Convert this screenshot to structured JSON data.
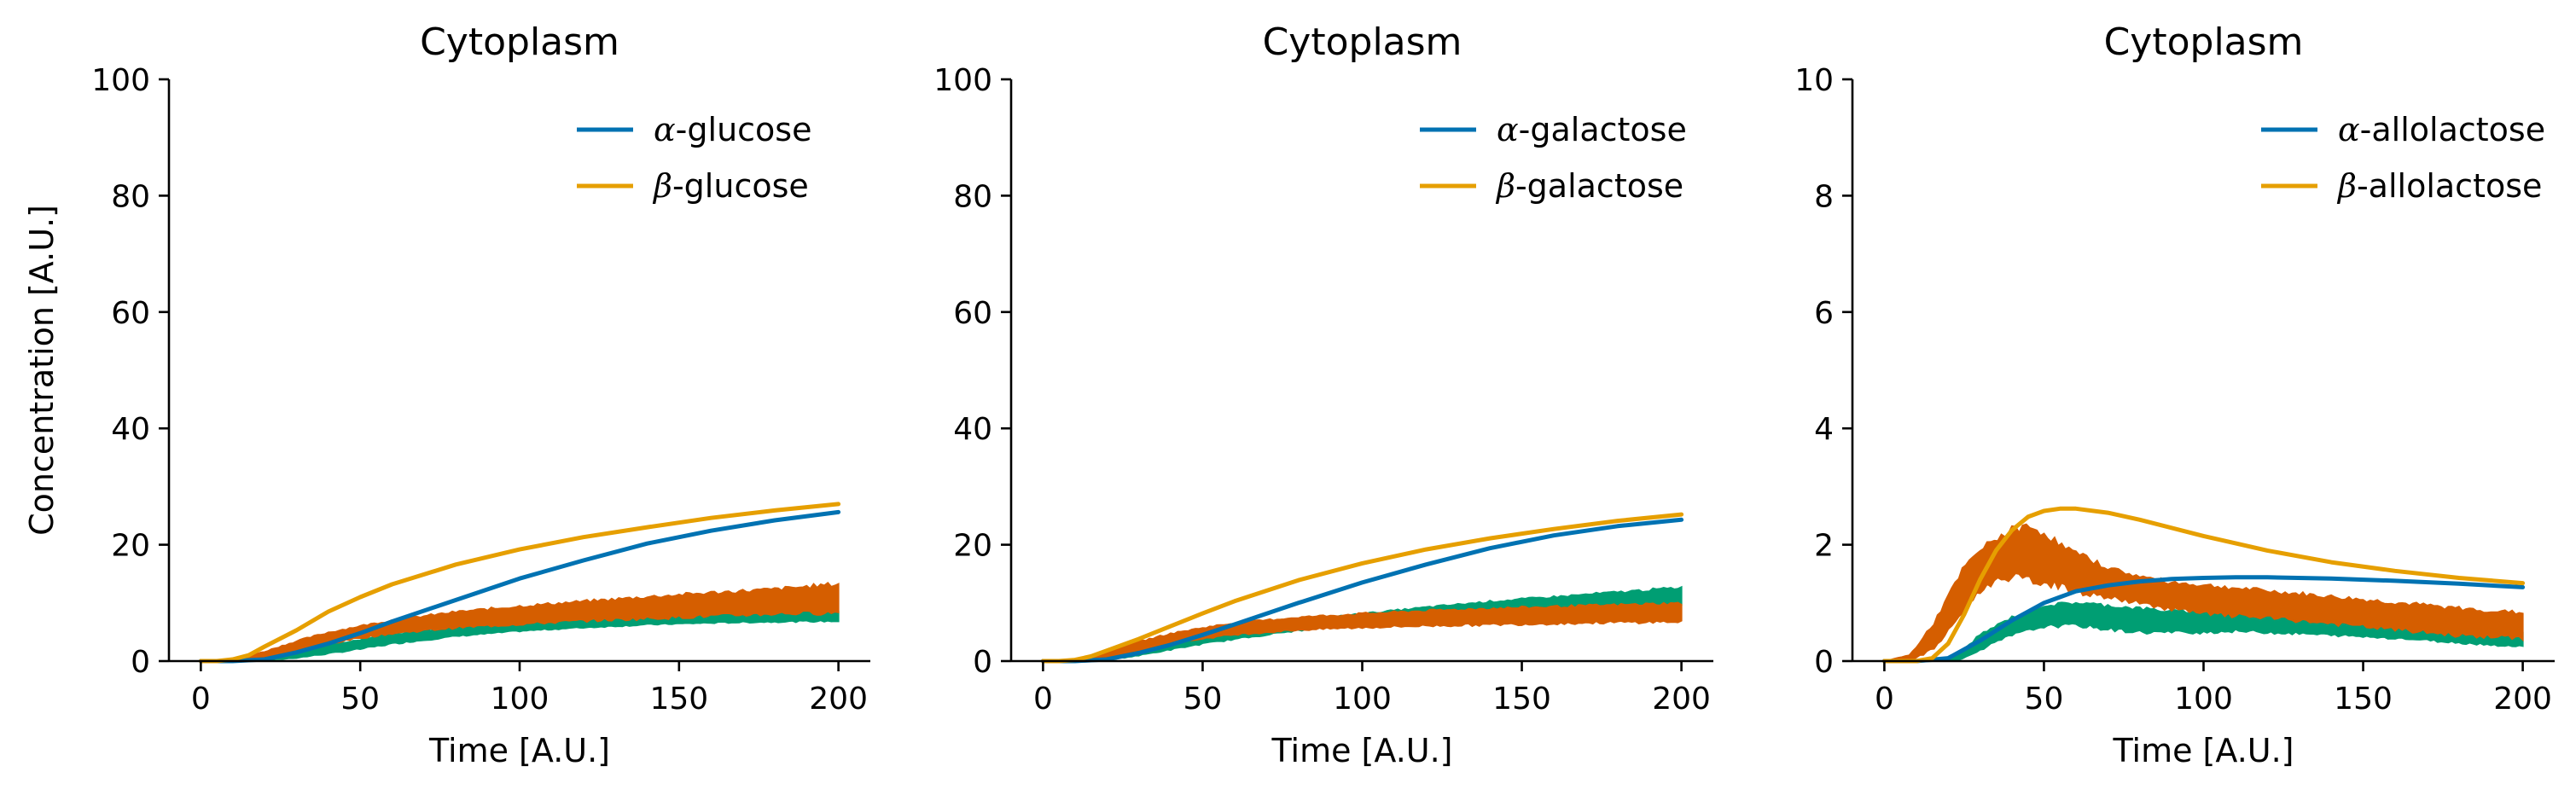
{
  "chart_data": [
    {
      "type": "line",
      "title": "Cytoplasm",
      "xlabel": "Time [A.U.]",
      "ylabel": "Concentration [A.U.]",
      "xlim": [
        -10,
        210
      ],
      "ylim": [
        0,
        100
      ],
      "xticks": [
        "0",
        "50",
        "100",
        "150",
        "200"
      ],
      "yticks": [
        "0",
        "20",
        "40",
        "60",
        "80",
        "100"
      ],
      "legend_position": "top-right",
      "series": [
        {
          "name": "α-glucose",
          "legend_greek": "α",
          "legend_rest": "-glucose",
          "style": "line",
          "color": "#0072b2",
          "x": [
            0,
            10,
            20,
            30,
            40,
            50,
            60,
            80,
            100,
            120,
            140,
            160,
            180,
            200
          ],
          "y": [
            0,
            0,
            0.3,
            1.5,
            3,
            4.8,
            6.8,
            10.5,
            14.2,
            17.3,
            20.2,
            22.4,
            24.2,
            25.6
          ]
        },
        {
          "name": "β-glucose",
          "legend_greek": "β",
          "legend_rest": "-glucose",
          "style": "line",
          "color": "#e69f00",
          "x": [
            0,
            5,
            10,
            15,
            20,
            30,
            40,
            50,
            60,
            80,
            100,
            120,
            140,
            160,
            180,
            200
          ],
          "y": [
            0,
            0,
            0.3,
            1,
            2.5,
            5.3,
            8.5,
            11,
            13.2,
            16.6,
            19.2,
            21.3,
            23,
            24.6,
            25.9,
            27
          ]
        },
        {
          "name": "",
          "style": "band",
          "color": "#009e73",
          "x": [
            0,
            10,
            20,
            30,
            40,
            50,
            60,
            80,
            100,
            120,
            140,
            160,
            180,
            200
          ],
          "lower": [
            0,
            0,
            0.1,
            0.6,
            1.3,
            2.1,
            3,
            4.3,
            5.2,
            5.8,
            6.3,
            6.6,
            6.8,
            6.9
          ],
          "upper": [
            0,
            0,
            0.6,
            1.6,
            2.6,
            3.7,
            4.6,
            5.8,
            6.6,
            7.2,
            7.7,
            8.1,
            8.4,
            8.6
          ]
        },
        {
          "name": "",
          "style": "band",
          "color": "#d55e00",
          "x": [
            0,
            10,
            20,
            30,
            40,
            50,
            60,
            80,
            100,
            120,
            140,
            160,
            180,
            200
          ],
          "lower": [
            0,
            0,
            0.6,
            1.8,
            3,
            4,
            4.8,
            5.8,
            6.4,
            7,
            7.4,
            7.8,
            8.2,
            8.4
          ],
          "upper": [
            0,
            0.2,
            1.6,
            3.4,
            4.9,
            6,
            7,
            8.4,
            9.4,
            10.2,
            11,
            11.7,
            12.3,
            13.2
          ]
        }
      ]
    },
    {
      "type": "line",
      "title": "Cytoplasm",
      "xlabel": "Time [A.U.]",
      "ylabel": "",
      "xlim": [
        -10,
        210
      ],
      "ylim": [
        0,
        100
      ],
      "xticks": [
        "0",
        "50",
        "100",
        "150",
        "200"
      ],
      "yticks": [
        "0",
        "20",
        "40",
        "60",
        "80",
        "100"
      ],
      "legend_position": "top-right",
      "series": [
        {
          "name": "α-galactose",
          "legend_greek": "α",
          "legend_rest": "-galactose",
          "style": "line",
          "color": "#0072b2",
          "x": [
            0,
            10,
            20,
            30,
            40,
            50,
            60,
            80,
            100,
            120,
            140,
            160,
            180,
            200
          ],
          "y": [
            0,
            0,
            0.3,
            1.4,
            2.8,
            4.5,
            6.3,
            10,
            13.5,
            16.6,
            19.4,
            21.6,
            23.2,
            24.3
          ]
        },
        {
          "name": "β-galactose",
          "legend_greek": "β",
          "legend_rest": "-galactose",
          "style": "line",
          "color": "#e69f00",
          "x": [
            0,
            5,
            10,
            15,
            20,
            30,
            40,
            50,
            60,
            80,
            100,
            120,
            140,
            160,
            180,
            200
          ],
          "y": [
            0,
            0,
            0.2,
            0.8,
            1.8,
            3.8,
            6,
            8.2,
            10.3,
            13.9,
            16.8,
            19.2,
            21.1,
            22.7,
            24.1,
            25.2
          ]
        },
        {
          "name": "",
          "style": "band",
          "color": "#009e73",
          "x": [
            0,
            10,
            20,
            30,
            40,
            50,
            60,
            80,
            100,
            120,
            140,
            160,
            180,
            200
          ],
          "lower": [
            0,
            0,
            0.2,
            1,
            2,
            3,
            3.8,
            5.3,
            6.4,
            7.3,
            8,
            8.6,
            9.1,
            9.4
          ],
          "upper": [
            0,
            0,
            0.7,
            2,
            3.3,
            4.5,
            5.4,
            6.9,
            8.1,
            9.2,
            10.2,
            11,
            11.8,
            12.6
          ]
        },
        {
          "name": "",
          "style": "band",
          "color": "#d55e00",
          "x": [
            0,
            10,
            20,
            30,
            40,
            50,
            60,
            80,
            100,
            120,
            140,
            160,
            180,
            200
          ],
          "lower": [
            0,
            0,
            0.6,
            1.8,
            3,
            3.9,
            4.6,
            5.4,
            5.8,
            6.1,
            6.3,
            6.5,
            6.7,
            6.8
          ],
          "upper": [
            0,
            0.2,
            1.6,
            3.3,
            4.7,
            5.7,
            6.5,
            7.5,
            8.1,
            8.6,
            9,
            9.3,
            9.6,
            9.9
          ]
        }
      ]
    },
    {
      "type": "line",
      "title": "Cytoplasm",
      "xlabel": "Time [A.U.]",
      "ylabel": "",
      "xlim": [
        -10,
        210
      ],
      "ylim": [
        0,
        10
      ],
      "xticks": [
        "0",
        "50",
        "100",
        "150",
        "200"
      ],
      "yticks": [
        "0",
        "2",
        "4",
        "6",
        "8",
        "10"
      ],
      "legend_position": "top-right",
      "series": [
        {
          "name": "α-allolactose",
          "legend_greek": "α",
          "legend_rest": "-allolactose",
          "style": "line",
          "color": "#0072b2",
          "x": [
            0,
            10,
            20,
            30,
            40,
            50,
            60,
            70,
            80,
            90,
            100,
            110,
            120,
            140,
            160,
            180,
            200
          ],
          "y": [
            0,
            0,
            0.05,
            0.35,
            0.7,
            1,
            1.2,
            1.3,
            1.37,
            1.41,
            1.43,
            1.44,
            1.44,
            1.42,
            1.38,
            1.33,
            1.27
          ]
        },
        {
          "name": "β-allolactose",
          "legend_greek": "β",
          "legend_rest": "-allolactose",
          "style": "line",
          "color": "#e69f00",
          "x": [
            0,
            10,
            15,
            20,
            25,
            30,
            35,
            40,
            45,
            50,
            55,
            60,
            70,
            80,
            100,
            120,
            140,
            160,
            180,
            200
          ],
          "y": [
            0,
            0,
            0.05,
            0.3,
            0.8,
            1.4,
            1.9,
            2.25,
            2.48,
            2.58,
            2.62,
            2.62,
            2.55,
            2.43,
            2.15,
            1.9,
            1.7,
            1.55,
            1.43,
            1.34
          ]
        },
        {
          "name": "",
          "style": "band",
          "color": "#009e73",
          "x": [
            0,
            10,
            20,
            25,
            30,
            40,
            50,
            60,
            70,
            80,
            90,
            100,
            110,
            120,
            140,
            160,
            180,
            200
          ],
          "lower": [
            0,
            0,
            0,
            0.05,
            0.2,
            0.45,
            0.6,
            0.62,
            0.55,
            0.5,
            0.5,
            0.5,
            0.52,
            0.5,
            0.45,
            0.4,
            0.32,
            0.25
          ],
          "upper": [
            0,
            0,
            0.05,
            0.2,
            0.45,
            0.75,
            0.95,
            1,
            0.95,
            0.9,
            0.85,
            0.85,
            0.85,
            0.82,
            0.72,
            0.65,
            0.55,
            0.48
          ]
        },
        {
          "name": "",
          "style": "band",
          "color": "#d55e00",
          "x": [
            0,
            8,
            15,
            20,
            25,
            30,
            35,
            40,
            45,
            50,
            55,
            60,
            70,
            80,
            90,
            100,
            120,
            140,
            160,
            180,
            200
          ],
          "lower": [
            0,
            0,
            0.2,
            0.5,
            0.9,
            1.2,
            1.4,
            1.45,
            1.4,
            1.35,
            1.3,
            1.2,
            1.1,
            1,
            0.9,
            0.82,
            0.75,
            0.65,
            0.55,
            0.45,
            0.4
          ],
          "upper": [
            0,
            0.1,
            0.6,
            1.1,
            1.6,
            1.9,
            2.1,
            2.25,
            2.3,
            2.2,
            2,
            1.85,
            1.6,
            1.45,
            1.35,
            1.3,
            1.2,
            1.1,
            1,
            0.9,
            0.82
          ]
        }
      ]
    }
  ]
}
